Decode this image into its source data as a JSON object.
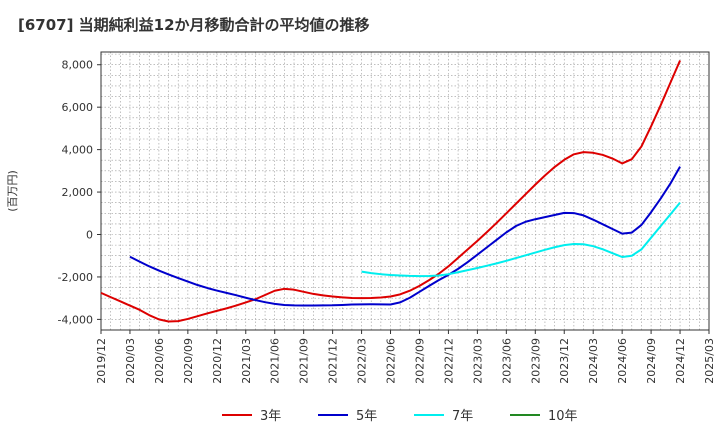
{
  "chart_data": {
    "type": "line",
    "title": "[6707]  当期純利益12か月移動合計の平均値の推移",
    "xlabel": "",
    "ylabel": "(百万円)",
    "ylim": [
      -4500,
      8600
    ],
    "yticks": [
      -4000,
      -2000,
      0,
      2000,
      4000,
      6000,
      8000
    ],
    "ytick_labels": [
      "-4,000",
      "-2,000",
      "0",
      "2,000",
      "4,000",
      "6,000",
      "8,000"
    ],
    "x_ticks": [
      "2019/12",
      "2020/03",
      "2020/06",
      "2020/09",
      "2020/12",
      "2021/03",
      "2021/06",
      "2021/09",
      "2021/12",
      "2022/03",
      "2022/06",
      "2022/09",
      "2022/12",
      "2023/03",
      "2023/06",
      "2023/09",
      "2023/12",
      "2024/03",
      "2024/06",
      "2024/09",
      "2024/12",
      "2025/03"
    ],
    "grid": true,
    "legend_position": "bottom",
    "series": [
      {
        "name": "3年",
        "color": "#dd0000",
        "points": [
          [
            "2019/12",
            -2750
          ],
          [
            "2020/01",
            -2950
          ],
          [
            "2020/02",
            -3150
          ],
          [
            "2020/03",
            -3350
          ],
          [
            "2020/04",
            -3550
          ],
          [
            "2020/05",
            -3800
          ],
          [
            "2020/06",
            -4000
          ],
          [
            "2020/07",
            -4100
          ],
          [
            "2020/08",
            -4080
          ],
          [
            "2020/09",
            -3980
          ],
          [
            "2020/10",
            -3850
          ],
          [
            "2020/11",
            -3720
          ],
          [
            "2020/12",
            -3600
          ],
          [
            "2021/01",
            -3480
          ],
          [
            "2021/02",
            -3350
          ],
          [
            "2021/03",
            -3200
          ],
          [
            "2021/04",
            -3050
          ],
          [
            "2021/05",
            -2850
          ],
          [
            "2021/06",
            -2650
          ],
          [
            "2021/07",
            -2560
          ],
          [
            "2021/08",
            -2600
          ],
          [
            "2021/09",
            -2700
          ],
          [
            "2021/10",
            -2800
          ],
          [
            "2021/11",
            -2870
          ],
          [
            "2021/12",
            -2920
          ],
          [
            "2022/01",
            -2960
          ],
          [
            "2022/02",
            -2990
          ],
          [
            "2022/03",
            -3000
          ],
          [
            "2022/04",
            -2990
          ],
          [
            "2022/05",
            -2970
          ],
          [
            "2022/06",
            -2920
          ],
          [
            "2022/07",
            -2820
          ],
          [
            "2022/08",
            -2650
          ],
          [
            "2022/09",
            -2420
          ],
          [
            "2022/10",
            -2150
          ],
          [
            "2022/11",
            -1850
          ],
          [
            "2022/12",
            -1500
          ],
          [
            "2023/01",
            -1100
          ],
          [
            "2023/02",
            -700
          ],
          [
            "2023/03",
            -300
          ],
          [
            "2023/04",
            120
          ],
          [
            "2023/05",
            550
          ],
          [
            "2023/06",
            1000
          ],
          [
            "2023/07",
            1450
          ],
          [
            "2023/08",
            1900
          ],
          [
            "2023/09",
            2350
          ],
          [
            "2023/10",
            2780
          ],
          [
            "2023/11",
            3180
          ],
          [
            "2023/12",
            3520
          ],
          [
            "2024/01",
            3780
          ],
          [
            "2024/02",
            3880
          ],
          [
            "2024/03",
            3850
          ],
          [
            "2024/04",
            3750
          ],
          [
            "2024/05",
            3580
          ],
          [
            "2024/06",
            3350
          ],
          [
            "2024/07",
            3550
          ],
          [
            "2024/08",
            4150
          ],
          [
            "2024/09",
            5100
          ],
          [
            "2024/10",
            6100
          ],
          [
            "2024/11",
            7150
          ],
          [
            "2024/12",
            8200
          ]
        ]
      },
      {
        "name": "5年",
        "color": "#0000cc",
        "points": [
          [
            "2020/03",
            -1050
          ],
          [
            "2020/04",
            -1280
          ],
          [
            "2020/05",
            -1500
          ],
          [
            "2020/06",
            -1700
          ],
          [
            "2020/07",
            -1880
          ],
          [
            "2020/08",
            -2050
          ],
          [
            "2020/09",
            -2220
          ],
          [
            "2020/10",
            -2380
          ],
          [
            "2020/11",
            -2520
          ],
          [
            "2020/12",
            -2640
          ],
          [
            "2021/01",
            -2750
          ],
          [
            "2021/02",
            -2860
          ],
          [
            "2021/03",
            -2980
          ],
          [
            "2021/04",
            -3090
          ],
          [
            "2021/05",
            -3190
          ],
          [
            "2021/06",
            -3270
          ],
          [
            "2021/07",
            -3320
          ],
          [
            "2021/08",
            -3340
          ],
          [
            "2021/09",
            -3345
          ],
          [
            "2021/10",
            -3345
          ],
          [
            "2021/11",
            -3340
          ],
          [
            "2021/12",
            -3335
          ],
          [
            "2022/01",
            -3320
          ],
          [
            "2022/02",
            -3300
          ],
          [
            "2022/03",
            -3290
          ],
          [
            "2022/04",
            -3285
          ],
          [
            "2022/05",
            -3290
          ],
          [
            "2022/06",
            -3300
          ],
          [
            "2022/07",
            -3200
          ],
          [
            "2022/08",
            -2980
          ],
          [
            "2022/09",
            -2700
          ],
          [
            "2022/10",
            -2420
          ],
          [
            "2022/11",
            -2150
          ],
          [
            "2022/12",
            -1900
          ],
          [
            "2023/01",
            -1620
          ],
          [
            "2023/02",
            -1300
          ],
          [
            "2023/03",
            -950
          ],
          [
            "2023/04",
            -600
          ],
          [
            "2023/05",
            -250
          ],
          [
            "2023/06",
            100
          ],
          [
            "2023/07",
            400
          ],
          [
            "2023/08",
            600
          ],
          [
            "2023/09",
            720
          ],
          [
            "2023/10",
            820
          ],
          [
            "2023/11",
            920
          ],
          [
            "2023/12",
            1020
          ],
          [
            "2024/01",
            1010
          ],
          [
            "2024/02",
            900
          ],
          [
            "2024/03",
            700
          ],
          [
            "2024/04",
            480
          ],
          [
            "2024/05",
            260
          ],
          [
            "2024/06",
            40
          ],
          [
            "2024/07",
            90
          ],
          [
            "2024/08",
            450
          ],
          [
            "2024/09",
            1050
          ],
          [
            "2024/10",
            1700
          ],
          [
            "2024/11",
            2400
          ],
          [
            "2024/12",
            3200
          ]
        ]
      },
      {
        "name": "7年",
        "color": "#00eeee",
        "points": [
          [
            "2022/03",
            -1750
          ],
          [
            "2022/04",
            -1820
          ],
          [
            "2022/05",
            -1870
          ],
          [
            "2022/06",
            -1910
          ],
          [
            "2022/07",
            -1930
          ],
          [
            "2022/08",
            -1950
          ],
          [
            "2022/09",
            -1960
          ],
          [
            "2022/10",
            -1955
          ],
          [
            "2022/11",
            -1930
          ],
          [
            "2022/12",
            -1870
          ],
          [
            "2023/01",
            -1780
          ],
          [
            "2023/02",
            -1680
          ],
          [
            "2023/03",
            -1580
          ],
          [
            "2023/04",
            -1470
          ],
          [
            "2023/05",
            -1360
          ],
          [
            "2023/06",
            -1240
          ],
          [
            "2023/07",
            -1110
          ],
          [
            "2023/08",
            -980
          ],
          [
            "2023/09",
            -850
          ],
          [
            "2023/10",
            -720
          ],
          [
            "2023/11",
            -600
          ],
          [
            "2023/12",
            -500
          ],
          [
            "2024/01",
            -450
          ],
          [
            "2024/02",
            -460
          ],
          [
            "2024/03",
            -550
          ],
          [
            "2024/04",
            -700
          ],
          [
            "2024/05",
            -880
          ],
          [
            "2024/06",
            -1060
          ],
          [
            "2024/07",
            -1000
          ],
          [
            "2024/08",
            -700
          ],
          [
            "2024/09",
            -150
          ],
          [
            "2024/10",
            400
          ],
          [
            "2024/11",
            950
          ],
          [
            "2024/12",
            1500
          ]
        ]
      },
      {
        "name": "10年",
        "color": "#228822",
        "points": []
      }
    ]
  }
}
